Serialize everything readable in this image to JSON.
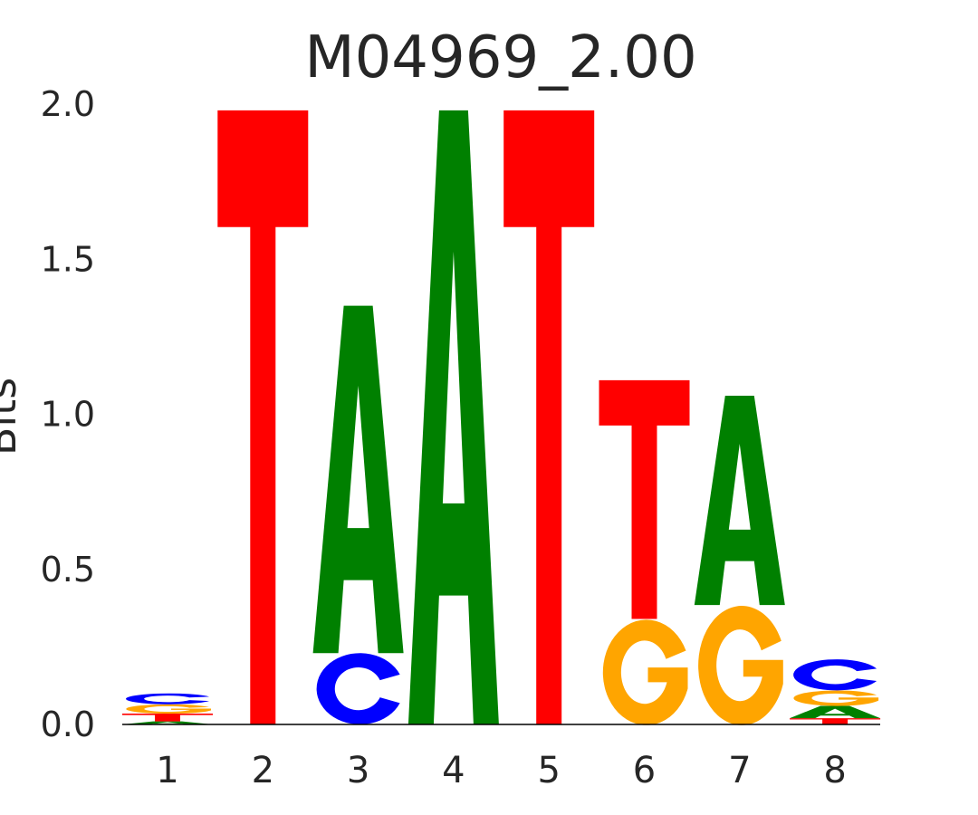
{
  "chart_data": {
    "type": "sequence-logo",
    "title": "M04969_2.00",
    "ylabel": "Bits",
    "ylim": [
      0,
      2.0
    ],
    "yticks": [
      "0.0",
      "0.5",
      "1.0",
      "1.5",
      "2.0"
    ],
    "categories": [
      "1",
      "2",
      "3",
      "4",
      "5",
      "6",
      "7",
      "8"
    ],
    "colors": {
      "A": "#008000",
      "C": "#0000ff",
      "G": "#ffa500",
      "T": "#ff0000"
    },
    "positions": [
      [
        {
          "base": "A",
          "bits": 0.01
        },
        {
          "base": "T",
          "bits": 0.025
        },
        {
          "base": "G",
          "bits": 0.03
        },
        {
          "base": "C",
          "bits": 0.035
        }
      ],
      [
        {
          "base": "T",
          "bits": 1.98
        }
      ],
      [
        {
          "base": "C",
          "bits": 0.23
        },
        {
          "base": "A",
          "bits": 1.12
        }
      ],
      [
        {
          "base": "A",
          "bits": 1.98
        }
      ],
      [
        {
          "base": "T",
          "bits": 1.98
        }
      ],
      [
        {
          "base": "G",
          "bits": 0.34
        },
        {
          "base": "T",
          "bits": 0.77
        }
      ],
      [
        {
          "base": "G",
          "bits": 0.385
        },
        {
          "base": "A",
          "bits": 0.675
        }
      ],
      [
        {
          "base": "T",
          "bits": 0.02
        },
        {
          "base": "A",
          "bits": 0.04
        },
        {
          "base": "G",
          "bits": 0.05
        },
        {
          "base": "C",
          "bits": 0.1
        }
      ]
    ]
  }
}
